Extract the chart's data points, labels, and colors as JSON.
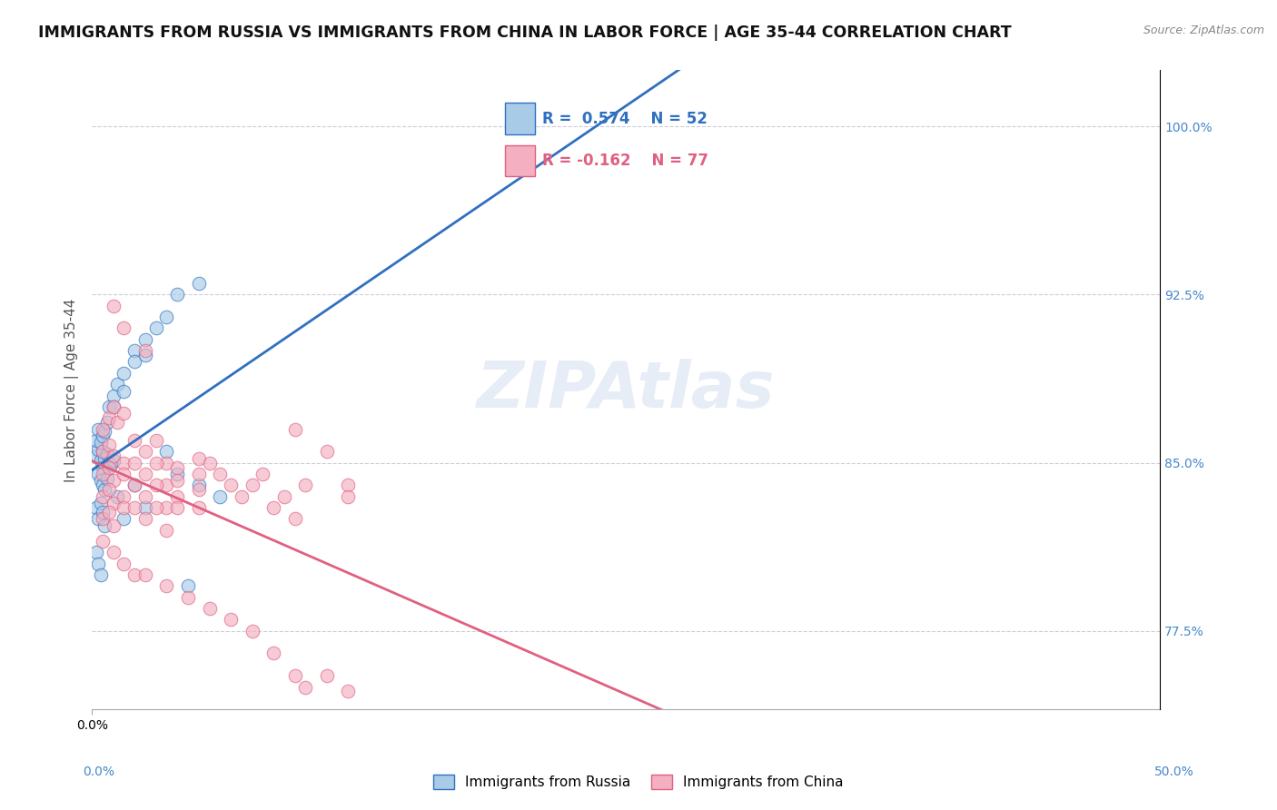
{
  "title": "IMMIGRANTS FROM RUSSIA VS IMMIGRANTS FROM CHINA IN LABOR FORCE | AGE 35-44 CORRELATION CHART",
  "source": "Source: ZipAtlas.com",
  "ylabel": "In Labor Force | Age 35-44",
  "right_yticks": [
    77.5,
    85.0,
    92.5,
    100.0
  ],
  "xlim": [
    0.0,
    14.5
  ],
  "ylim": [
    74.0,
    102.5
  ],
  "xaxis_left_label": "0.0%",
  "xaxis_right_label": "50.0%",
  "russia_R": 0.574,
  "russia_N": 52,
  "china_R": -0.162,
  "china_N": 77,
  "russia_color": "#a8cce8",
  "china_color": "#f4b0c0",
  "russia_line_color": "#3070c0",
  "china_line_color": "#e06080",
  "watermark": "ZIPAtlas",
  "russia_scatter": [
    [
      0.2,
      85.3
    ],
    [
      0.3,
      85.6
    ],
    [
      0.4,
      85.1
    ],
    [
      0.5,
      85.5
    ],
    [
      0.5,
      84.8
    ],
    [
      0.6,
      85.2
    ],
    [
      0.7,
      85.4
    ],
    [
      0.8,
      85.0
    ],
    [
      0.9,
      84.9
    ],
    [
      1.0,
      85.1
    ],
    [
      0.3,
      84.5
    ],
    [
      0.4,
      84.2
    ],
    [
      0.5,
      84.0
    ],
    [
      0.6,
      83.8
    ],
    [
      0.7,
      84.3
    ],
    [
      0.2,
      86.0
    ],
    [
      0.3,
      86.5
    ],
    [
      0.4,
      85.9
    ],
    [
      0.5,
      86.2
    ],
    [
      0.6,
      86.4
    ],
    [
      0.2,
      83.0
    ],
    [
      0.3,
      82.5
    ],
    [
      0.4,
      83.2
    ],
    [
      0.5,
      82.8
    ],
    [
      0.6,
      82.2
    ],
    [
      0.8,
      87.5
    ],
    [
      1.0,
      88.0
    ],
    [
      1.2,
      88.5
    ],
    [
      1.5,
      89.0
    ],
    [
      2.0,
      90.0
    ],
    [
      2.5,
      90.5
    ],
    [
      3.0,
      91.0
    ],
    [
      3.5,
      91.5
    ],
    [
      4.0,
      92.5
    ],
    [
      5.0,
      93.0
    ],
    [
      0.7,
      86.8
    ],
    [
      1.0,
      87.5
    ],
    [
      1.5,
      88.2
    ],
    [
      2.0,
      89.5
    ],
    [
      2.5,
      89.8
    ],
    [
      1.2,
      83.5
    ],
    [
      1.5,
      82.5
    ],
    [
      2.0,
      84.0
    ],
    [
      2.5,
      83.0
    ],
    [
      3.5,
      85.5
    ],
    [
      4.0,
      84.5
    ],
    [
      5.0,
      84.0
    ],
    [
      6.0,
      83.5
    ],
    [
      0.2,
      81.0
    ],
    [
      0.3,
      80.5
    ],
    [
      0.4,
      80.0
    ],
    [
      4.5,
      79.5
    ]
  ],
  "china_scatter": [
    [
      0.5,
      86.5
    ],
    [
      0.8,
      87.0
    ],
    [
      1.0,
      87.5
    ],
    [
      1.2,
      86.8
    ],
    [
      1.5,
      87.2
    ],
    [
      0.5,
      85.5
    ],
    [
      0.8,
      85.8
    ],
    [
      1.0,
      85.3
    ],
    [
      1.5,
      85.0
    ],
    [
      2.0,
      86.0
    ],
    [
      0.5,
      84.5
    ],
    [
      0.8,
      84.8
    ],
    [
      1.0,
      84.2
    ],
    [
      1.5,
      84.5
    ],
    [
      2.0,
      85.0
    ],
    [
      0.5,
      83.5
    ],
    [
      0.8,
      83.8
    ],
    [
      1.0,
      83.2
    ],
    [
      1.5,
      83.5
    ],
    [
      2.0,
      84.0
    ],
    [
      0.5,
      82.5
    ],
    [
      0.8,
      82.8
    ],
    [
      1.0,
      82.2
    ],
    [
      1.5,
      83.0
    ],
    [
      2.0,
      83.0
    ],
    [
      2.5,
      85.5
    ],
    [
      3.0,
      86.0
    ],
    [
      3.5,
      85.0
    ],
    [
      4.0,
      84.8
    ],
    [
      5.0,
      85.2
    ],
    [
      2.5,
      84.5
    ],
    [
      3.0,
      85.0
    ],
    [
      3.5,
      84.0
    ],
    [
      4.0,
      84.2
    ],
    [
      5.0,
      84.5
    ],
    [
      2.5,
      83.5
    ],
    [
      3.0,
      84.0
    ],
    [
      3.5,
      83.0
    ],
    [
      4.0,
      83.5
    ],
    [
      5.0,
      83.8
    ],
    [
      2.5,
      82.5
    ],
    [
      3.0,
      83.0
    ],
    [
      3.5,
      82.0
    ],
    [
      4.0,
      83.0
    ],
    [
      5.0,
      83.0
    ],
    [
      5.5,
      85.0
    ],
    [
      6.0,
      84.5
    ],
    [
      6.5,
      84.0
    ],
    [
      7.0,
      83.5
    ],
    [
      7.5,
      84.0
    ],
    [
      1.0,
      92.0
    ],
    [
      1.5,
      91.0
    ],
    [
      2.5,
      90.0
    ],
    [
      8.0,
      84.5
    ],
    [
      9.0,
      83.5
    ],
    [
      10.0,
      84.0
    ],
    [
      11.0,
      85.5
    ],
    [
      12.0,
      84.0
    ],
    [
      8.5,
      83.0
    ],
    [
      9.5,
      82.5
    ],
    [
      0.5,
      81.5
    ],
    [
      1.0,
      81.0
    ],
    [
      1.5,
      80.5
    ],
    [
      2.0,
      80.0
    ],
    [
      2.5,
      80.0
    ],
    [
      3.5,
      79.5
    ],
    [
      4.5,
      79.0
    ],
    [
      5.5,
      78.5
    ],
    [
      6.5,
      78.0
    ],
    [
      7.5,
      77.5
    ],
    [
      8.5,
      76.5
    ],
    [
      9.5,
      75.5
    ],
    [
      10.0,
      75.0
    ],
    [
      11.0,
      75.5
    ],
    [
      12.0,
      74.8
    ],
    [
      9.5,
      86.5
    ],
    [
      12.0,
      83.5
    ]
  ]
}
